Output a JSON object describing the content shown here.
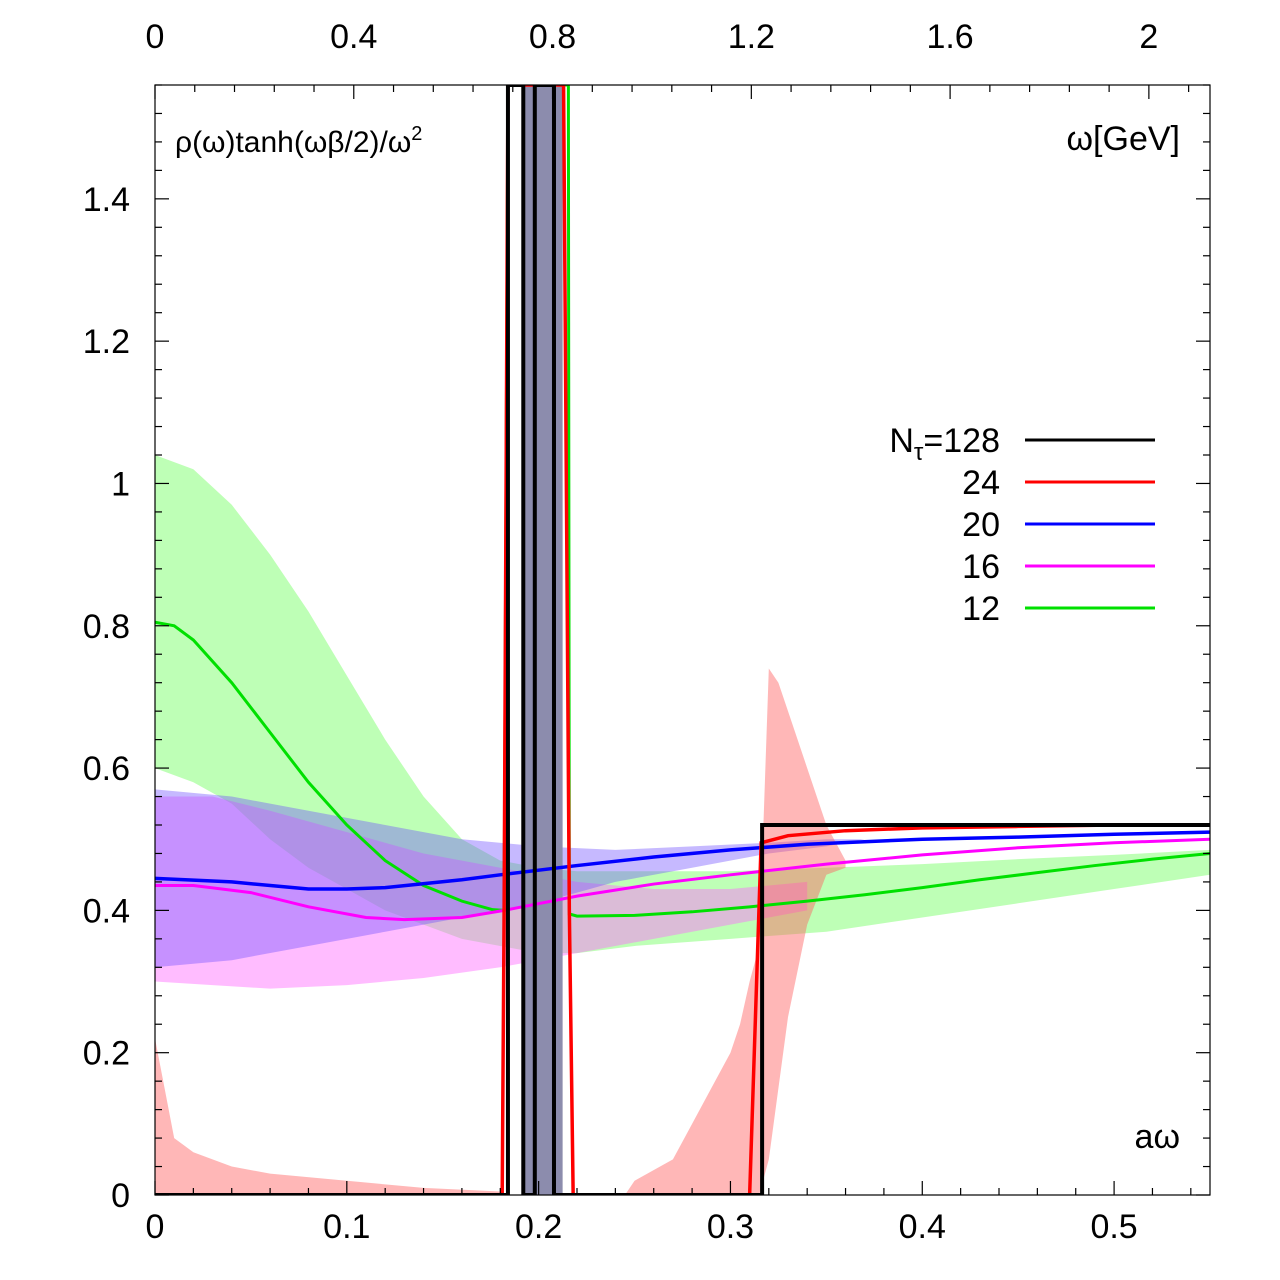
{
  "chart_data": {
    "type": "line",
    "ylabel": "ρ(ω)tanh(ωβ/2)/ω",
    "ylabel_sup": "2",
    "xlabel": "aω",
    "x2label": "ω[GeV]",
    "xlim": [
      0,
      0.55
    ],
    "ylim": [
      0,
      1.56
    ],
    "x_ticks": [
      "0",
      "0.1",
      "0.2",
      "0.3",
      "0.4",
      "0.5"
    ],
    "x_tick_values": [
      0,
      0.1,
      0.2,
      0.3,
      0.4,
      0.5
    ],
    "x2_ticks": [
      "0",
      "0.4",
      "0.8",
      "1.2",
      "1.6",
      "2"
    ],
    "x2_tick_values": [
      0,
      0.4,
      0.8,
      1.2,
      1.6,
      2.0
    ],
    "x2_per_x": 3.86,
    "y_ticks": [
      "0",
      "0.2",
      "0.4",
      "0.6",
      "0.8",
      "1",
      "1.2",
      "1.4"
    ],
    "y_tick_values": [
      0,
      0.2,
      0.4,
      0.6,
      0.8,
      1.0,
      1.2,
      1.4
    ],
    "legend_prefix": "N",
    "legend_sub": "τ",
    "legend_placement": "right",
    "series": [
      {
        "name": "128",
        "label": "=128",
        "color": "#000000",
        "x": [
          0,
          0.184,
          0.184,
          0.192,
          0.192,
          0.198,
          0.198,
          0.208,
          0.208,
          0.214,
          0.214,
          0.3165,
          0.3165,
          0.55
        ],
        "y": [
          0,
          0,
          1.56,
          1.56,
          0,
          0,
          1.56,
          1.56,
          0,
          0,
          0,
          0,
          0.52,
          0.52
        ]
      },
      {
        "name": "24",
        "label": "24",
        "color": "#ff0000",
        "x": [
          0,
          0.181,
          0.182,
          0.184,
          0.184,
          0.2,
          0.2,
          0.213,
          0.216,
          0.218,
          0.31,
          0.316,
          0.33,
          0.36,
          0.4,
          0.45,
          0.5,
          0.55
        ],
        "y": [
          0,
          0,
          0.4,
          1.56,
          1.56,
          1.56,
          1.56,
          1.56,
          0.4,
          0,
          0,
          0.495,
          0.505,
          0.512,
          0.516,
          0.518,
          0.52,
          0.52
        ],
        "band": {
          "x": [
            0,
            0.01,
            0.02,
            0.04,
            0.06,
            0.1,
            0.14,
            0.18,
            0.182,
            0.245,
            0.25,
            0.27,
            0.28,
            0.29,
            0.3,
            0.305,
            0.31,
            0.315,
            0.32,
            0.325,
            0.33,
            0.34,
            0.35,
            0.36
          ],
          "upper": [
            0.22,
            0.08,
            0.06,
            0.04,
            0.03,
            0.02,
            0.01,
            0.005,
            0,
            0,
            0.02,
            0.05,
            0.1,
            0.15,
            0.2,
            0.24,
            0.3,
            0.35,
            0.74,
            0.72,
            0.68,
            0.6,
            0.52,
            0.47
          ],
          "lower": [
            0,
            0,
            0,
            0,
            0,
            0,
            0,
            0,
            0,
            0,
            0,
            0,
            0,
            0,
            0,
            0,
            0,
            0,
            0.05,
            0.15,
            0.25,
            0.38,
            0.45,
            0.46
          ]
        }
      },
      {
        "name": "20",
        "label": "20",
        "color": "#0000ff",
        "x": [
          0,
          0.04,
          0.08,
          0.1,
          0.12,
          0.16,
          0.18,
          0.22,
          0.26,
          0.3,
          0.34,
          0.4,
          0.45,
          0.5,
          0.55
        ],
        "y": [
          0.445,
          0.44,
          0.43,
          0.43,
          0.432,
          0.443,
          0.45,
          0.463,
          0.475,
          0.485,
          0.493,
          0.5,
          0.503,
          0.507,
          0.51
        ],
        "band": {
          "x": [
            0,
            0.04,
            0.08,
            0.12,
            0.16,
            0.2,
            0.24,
            0.28,
            0.32,
            0.35,
            0.36,
            0.37
          ],
          "upper": [
            0.57,
            0.56,
            0.54,
            0.52,
            0.5,
            0.49,
            0.485,
            0.49,
            0.495,
            0.5,
            0.5,
            0.5
          ],
          "lower": [
            0.32,
            0.33,
            0.35,
            0.37,
            0.39,
            0.41,
            0.44,
            0.46,
            0.48,
            0.49,
            0.495,
            0.5
          ]
        }
      },
      {
        "name": "16",
        "label": "16",
        "color": "#ff00ff",
        "x": [
          0,
          0.02,
          0.05,
          0.08,
          0.11,
          0.13,
          0.16,
          0.182,
          0.22,
          0.26,
          0.3,
          0.35,
          0.4,
          0.45,
          0.5,
          0.55
        ],
        "y": [
          0.435,
          0.435,
          0.425,
          0.405,
          0.39,
          0.387,
          0.39,
          0.4,
          0.42,
          0.437,
          0.45,
          0.465,
          0.478,
          0.488,
          0.495,
          0.5
        ],
        "band": {
          "x": [
            0,
            0.03,
            0.06,
            0.1,
            0.14,
            0.18,
            0.22,
            0.26,
            0.3,
            0.34
          ],
          "upper": [
            0.56,
            0.56,
            0.54,
            0.51,
            0.48,
            0.46,
            0.44,
            0.43,
            0.43,
            0.44
          ],
          "lower": [
            0.3,
            0.295,
            0.29,
            0.295,
            0.305,
            0.32,
            0.34,
            0.36,
            0.38,
            0.4
          ]
        }
      },
      {
        "name": "12",
        "label": "12",
        "color": "#00e000",
        "x": [
          0,
          0.01,
          0.02,
          0.04,
          0.06,
          0.08,
          0.1,
          0.12,
          0.14,
          0.16,
          0.176,
          0.182,
          0.183,
          0.184,
          0.2,
          0.21,
          0.2155,
          0.216,
          0.22,
          0.25,
          0.28,
          0.31,
          0.34,
          0.37,
          0.4,
          0.43,
          0.46,
          0.49,
          0.52,
          0.55
        ],
        "y": [
          0.805,
          0.8,
          0.78,
          0.72,
          0.65,
          0.58,
          0.52,
          0.47,
          0.435,
          0.413,
          0.401,
          0.4,
          1.0,
          1.56,
          1.56,
          1.56,
          1.56,
          0.395,
          0.392,
          0.393,
          0.398,
          0.405,
          0.413,
          0.422,
          0.432,
          0.443,
          0.453,
          0.463,
          0.472,
          0.48
        ],
        "band": {
          "x": [
            0,
            0.02,
            0.04,
            0.06,
            0.08,
            0.1,
            0.12,
            0.14,
            0.16,
            0.18,
            0.2,
            0.22,
            0.25,
            0.3,
            0.35,
            0.4,
            0.45,
            0.5,
            0.55
          ],
          "upper": [
            1.04,
            1.02,
            0.97,
            0.9,
            0.82,
            0.73,
            0.64,
            0.56,
            0.5,
            0.47,
            0.46,
            0.455,
            0.455,
            0.455,
            0.46,
            0.465,
            0.472,
            0.478,
            0.485
          ],
          "lower": [
            0.6,
            0.58,
            0.55,
            0.5,
            0.46,
            0.43,
            0.4,
            0.38,
            0.36,
            0.35,
            0.34,
            0.34,
            0.35,
            0.36,
            0.37,
            0.39,
            0.41,
            0.43,
            0.45
          ]
        }
      }
    ],
    "spike_band": {
      "color": "#8c8cad",
      "x": [
        0.1925,
        0.2125
      ],
      "y": [
        0,
        1.56
      ]
    }
  }
}
